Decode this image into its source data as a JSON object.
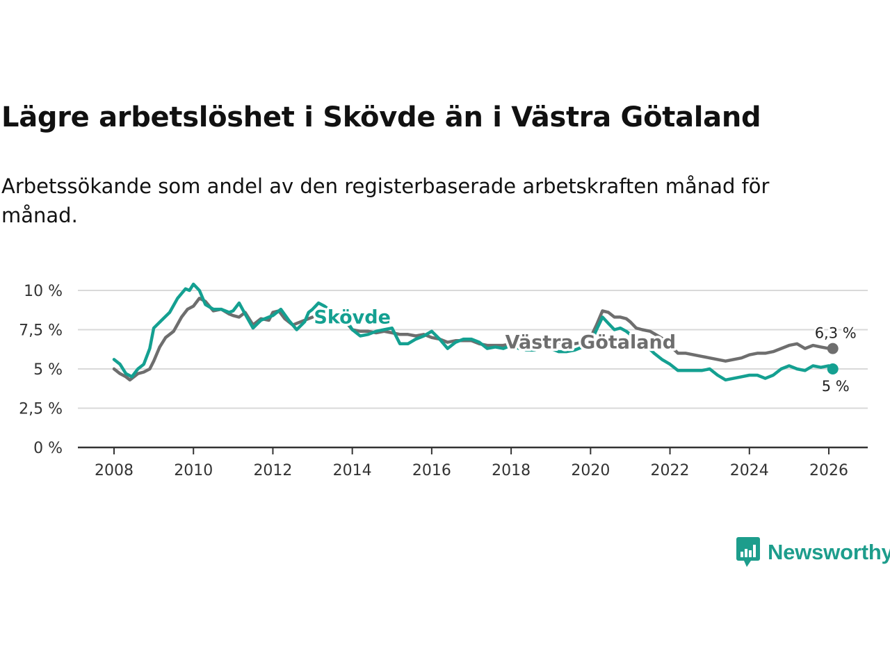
{
  "title": "Lägre arbetslöshet i Skövde än i Västra Götaland",
  "subtitle": "Arbetssökande som andel av den registerbaserade arbetskraften månad för månad.",
  "brand": {
    "name": "Newsworthy",
    "color": "#1d9d8c"
  },
  "chart_data": {
    "type": "line",
    "title": "Lägre arbetslöshet i Skövde än i Västra Götaland",
    "xlabel": "",
    "ylabel": "",
    "ylim": [
      0,
      10.5
    ],
    "xlim": [
      2007.2,
      2027.0
    ],
    "yticks": [
      {
        "value": 0,
        "label": "0 %"
      },
      {
        "value": 2.5,
        "label": "2,5 %"
      },
      {
        "value": 5,
        "label": "5 %"
      },
      {
        "value": 7.5,
        "label": "7,5 %"
      },
      {
        "value": 10,
        "label": "10 %"
      }
    ],
    "xticks": [
      {
        "value": 2008,
        "label": "2008"
      },
      {
        "value": 2010,
        "label": "2010"
      },
      {
        "value": 2012,
        "label": "2012"
      },
      {
        "value": 2014,
        "label": "2014"
      },
      {
        "value": 2016,
        "label": "2016"
      },
      {
        "value": 2018,
        "label": "2018"
      },
      {
        "value": 2020,
        "label": "2020"
      },
      {
        "value": 2022,
        "label": "2022"
      },
      {
        "value": 2024,
        "label": "2024"
      },
      {
        "value": 2026,
        "label": "2026"
      }
    ],
    "grid": true,
    "series": [
      {
        "name": "Västra Götaland",
        "color": "#6e6e6e",
        "end_label": "6,3 %",
        "x": [
          2008.0,
          2008.15,
          2008.3,
          2008.4,
          2008.5,
          2008.6,
          2008.75,
          2008.9,
          2009.0,
          2009.15,
          2009.3,
          2009.5,
          2009.7,
          2009.85,
          2010.0,
          2010.15,
          2010.3,
          2010.5,
          2010.7,
          2010.9,
          2011.0,
          2011.15,
          2011.3,
          2011.5,
          2011.7,
          2011.9,
          2012.0,
          2012.15,
          2012.3,
          2012.5,
          2012.7,
          2012.9,
          2013.0,
          2013.15,
          2013.3,
          2013.5,
          2013.7,
          2013.9,
          2014.0,
          2014.2,
          2014.4,
          2014.6,
          2014.8,
          2015.0,
          2015.2,
          2015.4,
          2015.6,
          2015.8,
          2016.0,
          2016.2,
          2016.4,
          2016.6,
          2016.8,
          2017.0,
          2017.2,
          2017.4,
          2017.6,
          2017.8,
          2018.0,
          2018.2,
          2018.4,
          2018.6,
          2018.8,
          2019.0,
          2019.2,
          2019.4,
          2019.6,
          2019.8,
          2020.0,
          2020.15,
          2020.3,
          2020.45,
          2020.6,
          2020.75,
          2020.9,
          2021.0,
          2021.15,
          2021.3,
          2021.5,
          2021.7,
          2021.9,
          2022.0,
          2022.2,
          2022.4,
          2022.6,
          2022.8,
          2023.0,
          2023.2,
          2023.4,
          2023.6,
          2023.8,
          2024.0,
          2024.2,
          2024.4,
          2024.6,
          2024.8,
          2025.0,
          2025.2,
          2025.4,
          2025.6,
          2025.8,
          2026.0,
          2026.1
        ],
        "values": [
          5.0,
          4.7,
          4.5,
          4.3,
          4.5,
          4.7,
          4.8,
          5.0,
          5.5,
          6.4,
          7.0,
          7.4,
          8.3,
          8.8,
          9.0,
          9.5,
          9.3,
          8.7,
          8.8,
          8.5,
          8.4,
          8.3,
          8.6,
          7.8,
          8.2,
          8.1,
          8.6,
          8.7,
          8.2,
          7.8,
          8.0,
          8.2,
          8.3,
          8.4,
          8.3,
          8.2,
          8.0,
          7.8,
          7.5,
          7.4,
          7.4,
          7.3,
          7.4,
          7.3,
          7.2,
          7.2,
          7.1,
          7.2,
          7.0,
          6.9,
          6.7,
          6.8,
          6.8,
          6.8,
          6.6,
          6.5,
          6.5,
          6.5,
          6.6,
          6.5,
          6.5,
          6.6,
          6.6,
          6.6,
          6.7,
          6.6,
          6.6,
          6.7,
          7.0,
          7.8,
          8.7,
          8.6,
          8.3,
          8.3,
          8.2,
          8.0,
          7.6,
          7.5,
          7.4,
          7.1,
          6.8,
          6.5,
          6.0,
          6.0,
          5.9,
          5.8,
          5.7,
          5.6,
          5.5,
          5.6,
          5.7,
          5.9,
          6.0,
          6.0,
          6.1,
          6.3,
          6.5,
          6.6,
          6.3,
          6.5,
          6.4,
          6.3,
          6.3
        ]
      },
      {
        "name": "Skövde",
        "color": "#14a091",
        "end_label": "5 %",
        "x": [
          2008.0,
          2008.15,
          2008.3,
          2008.45,
          2008.6,
          2008.75,
          2008.9,
          2009.0,
          2009.2,
          2009.4,
          2009.6,
          2009.8,
          2009.9,
          2010.0,
          2010.15,
          2010.3,
          2010.5,
          2010.7,
          2010.9,
          2011.0,
          2011.15,
          2011.3,
          2011.5,
          2011.7,
          2011.9,
          2012.0,
          2012.2,
          2012.4,
          2012.6,
          2012.8,
          2012.9,
          2013.0,
          2013.15,
          2013.3,
          2013.5,
          2013.7,
          2013.9,
          2014.0,
          2014.2,
          2014.4,
          2014.6,
          2014.8,
          2015.0,
          2015.2,
          2015.4,
          2015.6,
          2015.8,
          2016.0,
          2016.2,
          2016.4,
          2016.6,
          2016.8,
          2017.0,
          2017.2,
          2017.4,
          2017.6,
          2017.8,
          2018.0,
          2018.2,
          2018.4,
          2018.6,
          2018.8,
          2019.0,
          2019.2,
          2019.4,
          2019.6,
          2019.8,
          2020.0,
          2020.15,
          2020.3,
          2020.45,
          2020.6,
          2020.75,
          2020.9,
          2021.0,
          2021.2,
          2021.4,
          2021.6,
          2021.8,
          2022.0,
          2022.2,
          2022.4,
          2022.6,
          2022.8,
          2023.0,
          2023.2,
          2023.4,
          2023.6,
          2023.8,
          2024.0,
          2024.2,
          2024.4,
          2024.6,
          2024.8,
          2025.0,
          2025.2,
          2025.4,
          2025.6,
          2025.8,
          2026.0,
          2026.1
        ],
        "values": [
          5.6,
          5.3,
          4.7,
          4.5,
          5.0,
          5.3,
          6.3,
          7.6,
          8.1,
          8.6,
          9.5,
          10.1,
          10.0,
          10.4,
          10.0,
          9.1,
          8.8,
          8.8,
          8.6,
          8.7,
          9.2,
          8.5,
          7.6,
          8.1,
          8.3,
          8.4,
          8.8,
          8.1,
          7.5,
          8.0,
          8.6,
          8.8,
          9.2,
          9.0,
          8.6,
          8.2,
          7.9,
          7.5,
          7.1,
          7.2,
          7.4,
          7.5,
          7.6,
          6.6,
          6.6,
          6.9,
          7.1,
          7.4,
          6.9,
          6.3,
          6.7,
          6.9,
          6.9,
          6.7,
          6.3,
          6.4,
          6.3,
          6.5,
          6.3,
          6.2,
          6.2,
          6.4,
          6.3,
          6.1,
          6.1,
          6.2,
          6.4,
          6.6,
          7.5,
          8.3,
          7.9,
          7.5,
          7.6,
          7.4,
          7.2,
          6.8,
          6.5,
          6.0,
          5.6,
          5.3,
          4.9,
          4.9,
          4.9,
          4.9,
          5.0,
          4.6,
          4.3,
          4.4,
          4.5,
          4.6,
          4.6,
          4.4,
          4.6,
          5.0,
          5.2,
          5.0,
          4.9,
          5.2,
          5.1,
          5.2,
          5.0
        ]
      }
    ],
    "annotations": [
      {
        "text": "Skövde",
        "series": "Skövde",
        "x": 2014.0,
        "y": 8.3
      },
      {
        "text": "Västra Götaland",
        "series": "Västra Götaland",
        "x": 2020.0,
        "y": 6.7
      }
    ]
  }
}
